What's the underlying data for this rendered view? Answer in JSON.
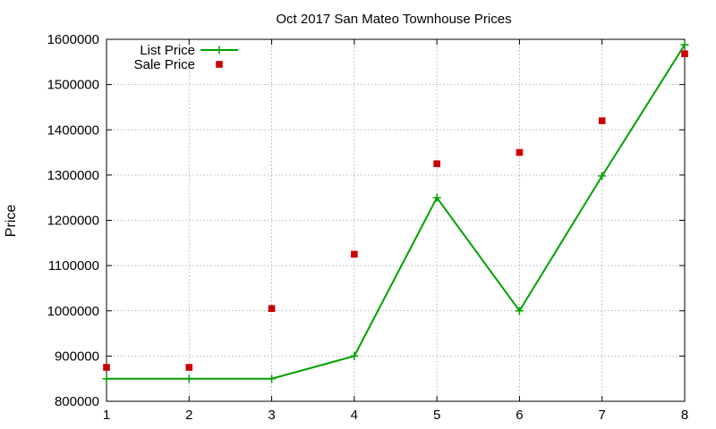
{
  "chart_data": {
    "type": "line",
    "title": "Oct 2017 San Mateo Townhouse Prices",
    "xlabel": "",
    "ylabel": "Price",
    "x": [
      1,
      2,
      3,
      4,
      5,
      6,
      7,
      8
    ],
    "xlim": [
      1,
      8
    ],
    "ylim": [
      800000,
      1600000
    ],
    "x_ticks": [
      "1",
      "2",
      "3",
      "4",
      "5",
      "6",
      "7",
      "8"
    ],
    "y_ticks": [
      "800000",
      "900000",
      "1000000",
      "1100000",
      "1200000",
      "1300000",
      "1400000",
      "1500000",
      "1600000"
    ],
    "grid": true,
    "legend_position": "top-left",
    "series": [
      {
        "name": "List Price",
        "style": "line with plus markers",
        "color": "#00a000",
        "values": [
          850000,
          850000,
          850000,
          900000,
          1250000,
          1000000,
          1298000,
          1588000
        ]
      },
      {
        "name": "Sale Price",
        "style": "square markers",
        "color": "#cc0000",
        "values": [
          875000,
          875000,
          1005000,
          1125000,
          1325000,
          1350000,
          1420000,
          1568000
        ]
      }
    ]
  }
}
